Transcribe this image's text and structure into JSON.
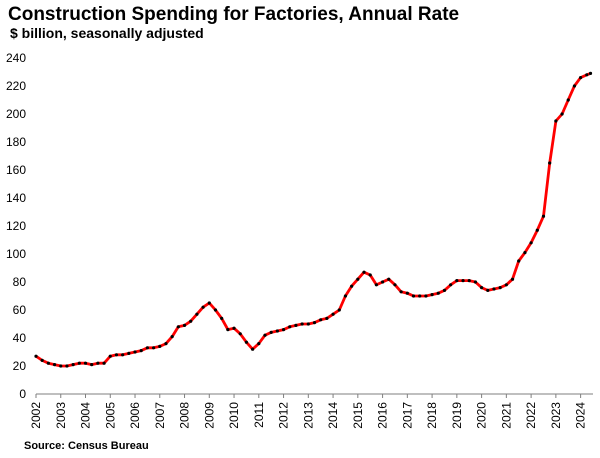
{
  "chart_data": {
    "type": "line",
    "title": "Construction Spending for Factories, Annual Rate",
    "subtitle": "$ billion, seasonally adjusted",
    "source": "Source: Census Bureau",
    "xlabel": "",
    "ylabel": "",
    "ylim": [
      0,
      240
    ],
    "yticks": [
      "0",
      "20",
      "40",
      "60",
      "80",
      "100",
      "120",
      "140",
      "160",
      "180",
      "200",
      "220",
      "240"
    ],
    "xlim": [
      2002,
      2024.5
    ],
    "xticks": [
      "2002",
      "2003",
      "2004",
      "2005",
      "2006",
      "2007",
      "2008",
      "2009",
      "2010",
      "2011",
      "2012",
      "2013",
      "2014",
      "2015",
      "2016",
      "2017",
      "2018",
      "2019",
      "2020",
      "2021",
      "2022",
      "2023",
      "2024"
    ],
    "grid": false,
    "legend": "none",
    "colors": {
      "line": "#ff0000",
      "markers": "#000000",
      "axis": "#7f7f7f"
    },
    "series": [
      {
        "x": [
          2002.0,
          2002.25,
          2002.5,
          2002.75,
          2003.0,
          2003.25,
          2003.5,
          2003.75,
          2004.0,
          2004.25,
          2004.5,
          2004.75,
          2005.0,
          2005.25,
          2005.5,
          2005.75,
          2006.0,
          2006.25,
          2006.5,
          2006.75,
          2007.0,
          2007.25,
          2007.5,
          2007.75,
          2008.0,
          2008.25,
          2008.5,
          2008.75,
          2009.0,
          2009.25,
          2009.5,
          2009.75,
          2010.0,
          2010.25,
          2010.5,
          2010.75,
          2011.0,
          2011.25,
          2011.5,
          2011.75,
          2012.0,
          2012.25,
          2012.5,
          2012.75,
          2013.0,
          2013.25,
          2013.5,
          2013.75,
          2014.0,
          2014.25,
          2014.5,
          2014.75,
          2015.0,
          2015.25,
          2015.5,
          2015.75,
          2016.0,
          2016.25,
          2016.5,
          2016.75,
          2017.0,
          2017.25,
          2017.5,
          2017.75,
          2018.0,
          2018.25,
          2018.5,
          2018.75,
          2019.0,
          2019.25,
          2019.5,
          2019.75,
          2020.0,
          2020.25,
          2020.5,
          2020.75,
          2021.0,
          2021.25,
          2021.5,
          2021.75,
          2022.0,
          2022.25,
          2022.5,
          2022.75,
          2023.0,
          2023.25,
          2023.5,
          2023.75,
          2024.0,
          2024.25,
          2024.4
        ],
        "y": [
          27,
          24,
          22,
          21,
          20,
          20,
          21,
          22,
          22,
          21,
          22,
          22,
          27,
          28,
          28,
          29,
          30,
          31,
          33,
          33,
          34,
          36,
          41,
          48,
          49,
          52,
          57,
          62,
          65,
          60,
          54,
          46,
          47,
          43,
          37,
          32,
          36,
          42,
          44,
          45,
          46,
          48,
          49,
          50,
          50,
          51,
          53,
          54,
          57,
          60,
          70,
          77,
          82,
          87,
          85,
          78,
          80,
          82,
          78,
          73,
          72,
          70,
          70,
          70,
          71,
          72,
          74,
          78,
          81,
          81,
          81,
          80,
          76,
          74,
          75,
          76,
          78,
          82,
          95,
          101,
          108,
          117,
          127,
          165,
          195,
          200,
          210,
          220,
          226,
          228,
          229
        ]
      }
    ]
  }
}
